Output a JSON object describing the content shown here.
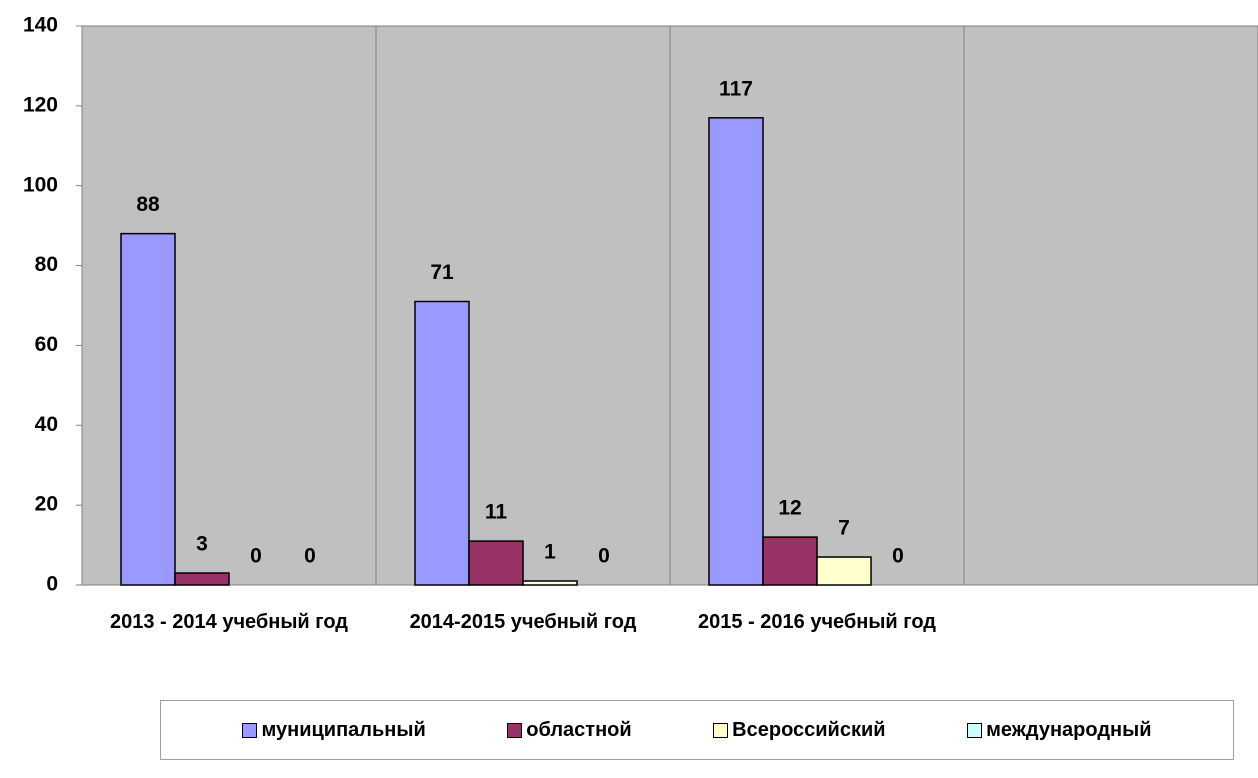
{
  "chart_data": {
    "type": "bar",
    "categories": [
      "2013 - 2014 учебный год",
      "2014-2015 учебный год",
      "2015 - 2016 учебный год",
      null
    ],
    "series": [
      {
        "name": "муниципальный",
        "color": "#9999ff",
        "values": [
          88,
          71,
          117,
          null
        ]
      },
      {
        "name": "областной",
        "color": "#993366",
        "values": [
          3,
          11,
          12,
          null
        ]
      },
      {
        "name": "Всероссийский",
        "color": "#ffffcc",
        "values": [
          0,
          1,
          7,
          null
        ]
      },
      {
        "name": "международный",
        "color": "#ccffff",
        "values": [
          0,
          0,
          0,
          null
        ]
      }
    ],
    "ylim": [
      0,
      140
    ],
    "yticks": [
      0,
      20,
      40,
      60,
      80,
      100,
      120,
      140
    ],
    "plot_background": "#c0c0c0",
    "legend": "bottom"
  }
}
